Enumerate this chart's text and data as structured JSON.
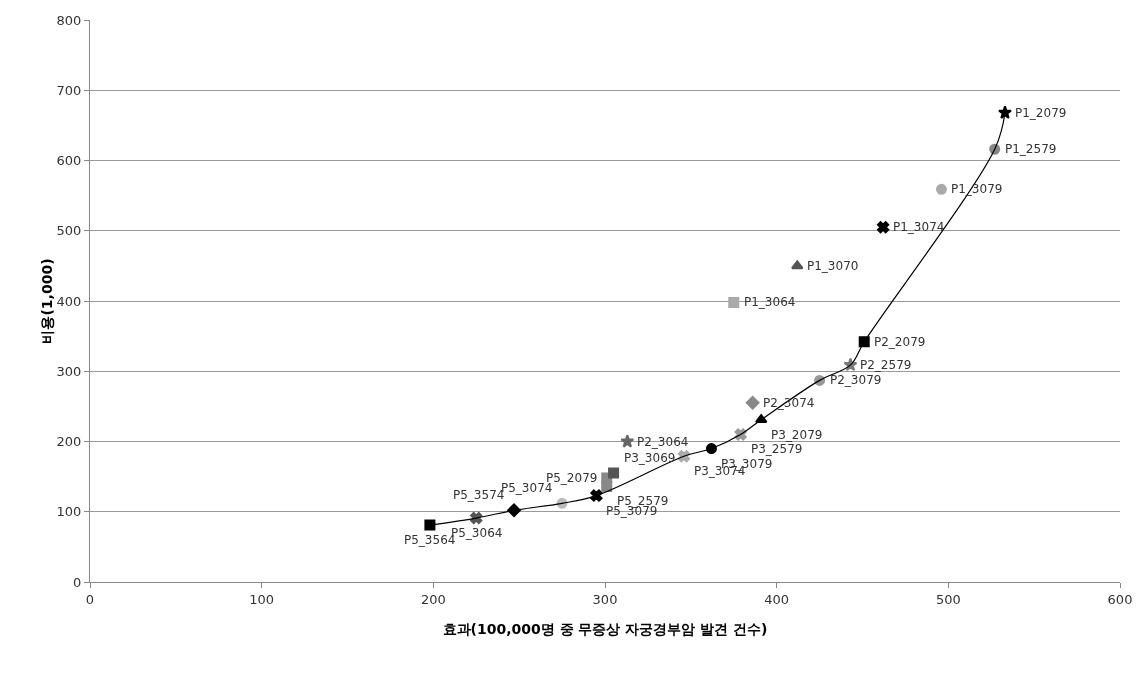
{
  "chart_data": {
    "type": "scatter",
    "xlabel": "효과(100,000명 중 무증상 자궁경부암 발견 건수)",
    "ylabel": "비용(1,000)",
    "xlim": [
      0,
      600
    ],
    "xticks": [
      0,
      100,
      200,
      300,
      400,
      500,
      600
    ],
    "ylim": [
      0,
      800
    ],
    "yticks": [
      0,
      100,
      200,
      300,
      400,
      500,
      600,
      700,
      800
    ],
    "grid": "y",
    "legend": false,
    "series": [
      {
        "name": "P5_3564",
        "color": "#000000",
        "marker": "square",
        "x": [
          198
        ],
        "values": [
          81
        ]
      },
      {
        "name": "P5_3064",
        "color": "#555555",
        "marker": "cross",
        "x": [
          225
        ],
        "values": [
          91
        ]
      },
      {
        "name": "P5_3574",
        "color": "#000000",
        "marker": "diamond",
        "x": [
          247
        ],
        "values": [
          102
        ]
      },
      {
        "name": "P5_3074",
        "color": "#bbbbbb",
        "marker": "circle",
        "x": [
          275
        ],
        "values": [
          112
        ]
      },
      {
        "name": "P5_3079",
        "color": "#000000",
        "marker": "cross",
        "x": [
          295
        ],
        "values": [
          123
        ]
      },
      {
        "name": "P5_2579",
        "color": "#888888",
        "marker": "square",
        "x": [
          301
        ],
        "values": [
          136
        ]
      },
      {
        "name": "P5_2079",
        "color": "#888888",
        "marker": "square",
        "x": [
          301
        ],
        "values": [
          148
        ]
      },
      {
        "name": "P3_3069",
        "color": "#555555",
        "marker": "square",
        "x": [
          305
        ],
        "values": [
          155
        ]
      },
      {
        "name": "P2_3064",
        "color": "#666666",
        "marker": "star",
        "x": [
          313
        ],
        "values": [
          200
        ]
      },
      {
        "name": "P3_3074",
        "color": "#aaaaaa",
        "marker": "cross",
        "x": [
          346
        ],
        "values": [
          179
        ]
      },
      {
        "name": "P3_3079",
        "color": "#000000",
        "marker": "circle",
        "x": [
          362
        ],
        "values": [
          190
        ]
      },
      {
        "name": "P3_2579",
        "color": "#999999",
        "marker": "cross",
        "x": [
          379
        ],
        "values": [
          210
        ]
      },
      {
        "name": "P3_2079",
        "color": "#000000",
        "marker": "triangle",
        "x": [
          391
        ],
        "values": [
          231
        ]
      },
      {
        "name": "P2_3074",
        "color": "#888888",
        "marker": "diamond",
        "x": [
          386
        ],
        "values": [
          255
        ]
      },
      {
        "name": "P2_3079",
        "color": "#999999",
        "marker": "circle",
        "x": [
          425
        ],
        "values": [
          287
        ]
      },
      {
        "name": "P2_2579",
        "color": "#777777",
        "marker": "star",
        "x": [
          443
        ],
        "values": [
          309
        ]
      },
      {
        "name": "P2_2079",
        "color": "#000000",
        "marker": "square",
        "x": [
          451
        ],
        "values": [
          342
        ]
      },
      {
        "name": "P1_3064",
        "color": "#aaaaaa",
        "marker": "square",
        "x": [
          375
        ],
        "values": [
          398
        ]
      },
      {
        "name": "P1_3070",
        "color": "#555555",
        "marker": "triangle",
        "x": [
          412
        ],
        "values": [
          450
        ]
      },
      {
        "name": "P1_3074",
        "color": "#000000",
        "marker": "cross",
        "x": [
          462
        ],
        "values": [
          505
        ]
      },
      {
        "name": "P1_3079",
        "color": "#aaaaaa",
        "marker": "circle",
        "x": [
          496
        ],
        "values": [
          559
        ]
      },
      {
        "name": "P1_2579",
        "color": "#888888",
        "marker": "circle",
        "x": [
          527
        ],
        "values": [
          616
        ]
      },
      {
        "name": "P1_2079",
        "color": "#000000",
        "marker": "star",
        "x": [
          533
        ],
        "values": [
          668
        ]
      },
      {
        "type": "line",
        "color": "#000000",
        "marker": "none",
        "x": [
          198,
          225,
          247,
          275,
          295,
          346,
          362,
          379,
          391,
          425,
          443,
          451,
          527,
          533
        ],
        "values": [
          81,
          91,
          102,
          112,
          123,
          179,
          190,
          210,
          231,
          287,
          309,
          342,
          616,
          668
        ]
      }
    ]
  }
}
